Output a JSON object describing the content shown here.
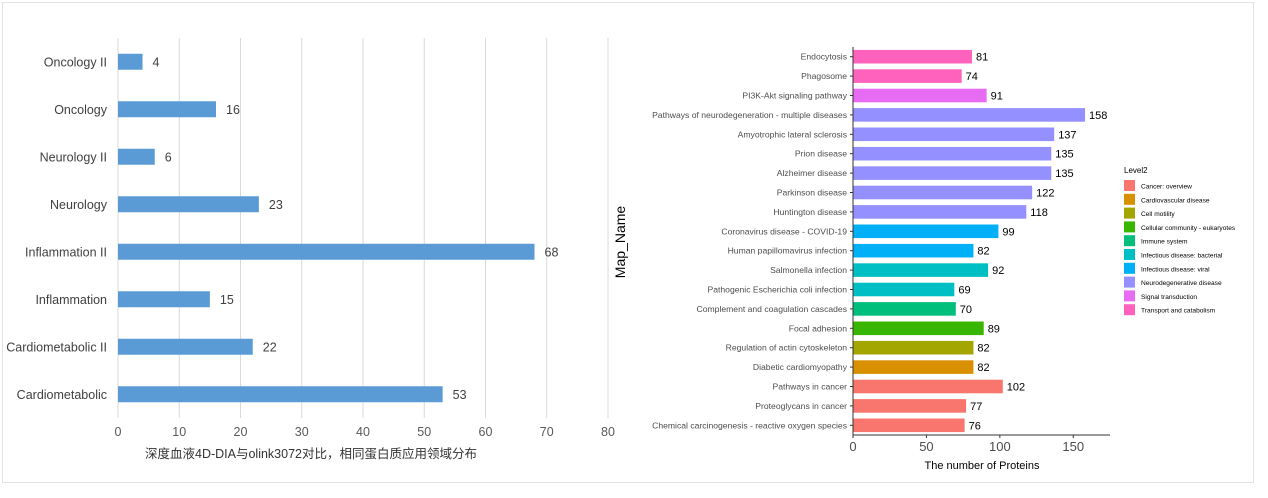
{
  "chart_data": [
    {
      "type": "bar",
      "orientation": "horizontal",
      "title": "",
      "categories": [
        "Oncology II",
        "Oncology",
        "Neurology II",
        "Neurology",
        "Inflammation II",
        "Inflammation",
        "Cardiometabolic II",
        "Cardiometabolic"
      ],
      "values": [
        4,
        16,
        6,
        23,
        68,
        15,
        22,
        53
      ],
      "xlim": [
        0,
        80
      ],
      "xticks": [
        0,
        10,
        20,
        30,
        40,
        50,
        60,
        70,
        80
      ],
      "xlabel": "深度血液4D-DIA与olink3072对比，相同蛋白质应用领域分布",
      "ylabel": "",
      "bar_color": "#5b9bd5",
      "grid": "vertical"
    },
    {
      "type": "bar",
      "orientation": "horizontal",
      "title": "",
      "categories": [
        "Endocytosis",
        "Phagosome",
        "PI3K-Akt signaling pathway",
        "Pathways of neurodegeneration - multiple diseases",
        "Amyotrophic lateral sclerosis",
        "Prion disease",
        "Alzheimer disease",
        "Parkinson disease",
        "Huntington disease",
        "Coronavirus disease - COVID-19",
        "Human papillomavirus infection",
        "Salmonella infection",
        "Pathogenic Escherichia coli infection",
        "Complement and coagulation cascades",
        "Focal adhesion",
        "Regulation of actin cytoskeleton",
        "Diabetic cardiomyopathy",
        "Pathways in cancer",
        "Proteoglycans in cancer",
        "Chemical carcinogenesis - reactive oxygen species"
      ],
      "values": [
        81,
        74,
        91,
        158,
        137,
        135,
        135,
        122,
        118,
        99,
        82,
        92,
        69,
        70,
        89,
        82,
        82,
        102,
        77,
        76
      ],
      "groups": [
        9,
        9,
        8,
        7,
        7,
        7,
        7,
        7,
        7,
        6,
        6,
        5,
        5,
        4,
        3,
        2,
        1,
        0,
        0,
        0
      ],
      "xlim": [
        0,
        175
      ],
      "xticks": [
        0,
        50,
        100,
        150
      ],
      "xlabel": "The number of Proteins",
      "ylabel": "Map_Name",
      "legend": {
        "title": "Level2",
        "position": "right",
        "entries": [
          {
            "label": "Cancer: overview",
            "color": "#f8766d"
          },
          {
            "label": "Cardiovascular disease",
            "color": "#d89000"
          },
          {
            "label": "Cell motility",
            "color": "#a3a500"
          },
          {
            "label": "Cellular community - eukaryotes",
            "color": "#39b600"
          },
          {
            "label": "Immune system",
            "color": "#00bf7d"
          },
          {
            "label": "Infectious disease: bacterial",
            "color": "#00bfc4"
          },
          {
            "label": "Infectious disease: viral",
            "color": "#00b0f6"
          },
          {
            "label": "Neurodegenerative disease",
            "color": "#9590ff"
          },
          {
            "label": "Signal transduction",
            "color": "#e76bf3"
          },
          {
            "label": "Transport and catabolism",
            "color": "#ff62bc"
          }
        ]
      }
    }
  ]
}
